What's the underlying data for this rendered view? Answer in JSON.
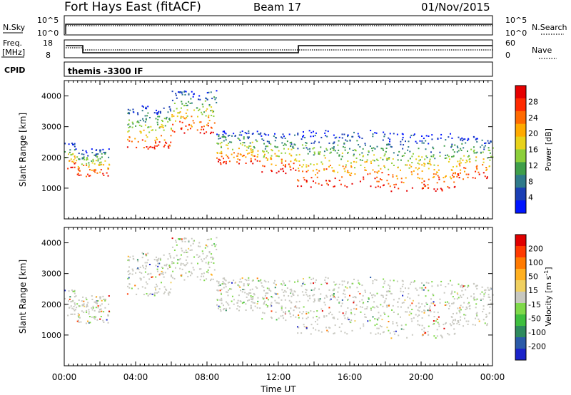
{
  "header": {
    "station": "Fort Hays East (fitACF)",
    "beam": "Beam 17",
    "date": "01/Nov/2015"
  },
  "top_panels": {
    "nsky_label": "N.Sky",
    "nsky_ticks": [
      "10^5",
      "10^0"
    ],
    "nsearch_label": "N.Search",
    "nsearch_ticks": [
      "10^5",
      "10^0"
    ],
    "freq_label": "Freq.",
    "freq_unit": "[MHz]",
    "freq_ticks": [
      "18",
      "8"
    ],
    "nave_label": "Nave",
    "nave_ticks": [
      "60",
      "0"
    ],
    "cpid_label": "CPID",
    "cpid_text": "themis -3300 IF"
  },
  "chart_data": [
    {
      "type": "heatmap",
      "name": "power",
      "ylabel": "Slant Range [km]",
      "ylim": [
        0,
        4500
      ],
      "yticks": [
        "1000",
        "2000",
        "3000",
        "4000"
      ],
      "xlim": [
        0,
        24
      ],
      "colorbar": {
        "label": "Power [dB]",
        "ticks": [
          "4",
          "8",
          "12",
          "16",
          "20",
          "24",
          "28"
        ],
        "colors": [
          "#0015ff",
          "#1b3fb5",
          "#2f7a8a",
          "#3f9f4a",
          "#8ccf3a",
          "#e8d21a",
          "#ffaa00",
          "#ff6a00",
          "#ff2a00",
          "#e60000"
        ]
      },
      "scatter_bands": [
        {
          "hours": [
            0.0,
            0.6
          ],
          "range": [
            1650,
            2550
          ]
        },
        {
          "hours": [
            0.6,
            2.5
          ],
          "range": [
            1400,
            2300
          ]
        },
        {
          "hours": [
            3.5,
            6.0
          ],
          "range": [
            2300,
            3700
          ]
        },
        {
          "hours": [
            6.0,
            8.5
          ],
          "range": [
            2800,
            4200
          ]
        },
        {
          "hours": [
            8.5,
            11.0
          ],
          "range": [
            1800,
            2900
          ]
        },
        {
          "hours": [
            11.0,
            13.0
          ],
          "range": [
            1500,
            2800
          ]
        },
        {
          "hours": [
            13.0,
            18.0
          ],
          "range": [
            1050,
            2900
          ]
        },
        {
          "hours": [
            18.0,
            22.0
          ],
          "range": [
            900,
            2800
          ]
        },
        {
          "hours": [
            22.0,
            24.0
          ],
          "range": [
            1300,
            2700
          ]
        }
      ]
    },
    {
      "type": "heatmap",
      "name": "velocity",
      "ylabel": "Slant Range [km]",
      "ylim": [
        0,
        4500
      ],
      "yticks": [
        "1000",
        "2000",
        "3000",
        "4000"
      ],
      "xlim": [
        0,
        24
      ],
      "xticks": [
        "00:00",
        "04:00",
        "08:00",
        "12:00",
        "16:00",
        "20:00",
        "00:00"
      ],
      "xlabel": "Time UT",
      "colorbar": {
        "label": "Velocity [m s",
        "label_sup": "-1",
        "label_end": "]",
        "ticks": [
          "200",
          "100",
          "50",
          "15",
          "-15",
          "-50",
          "-100",
          "-200"
        ],
        "colors": [
          "#1a23c9",
          "#2a5aa8",
          "#2e8a5e",
          "#3fbf3f",
          "#7fd94a",
          "#c8c8c0",
          "#f0d060",
          "#ffb020",
          "#ff7a00",
          "#ff3a00",
          "#e00000"
        ]
      }
    }
  ]
}
